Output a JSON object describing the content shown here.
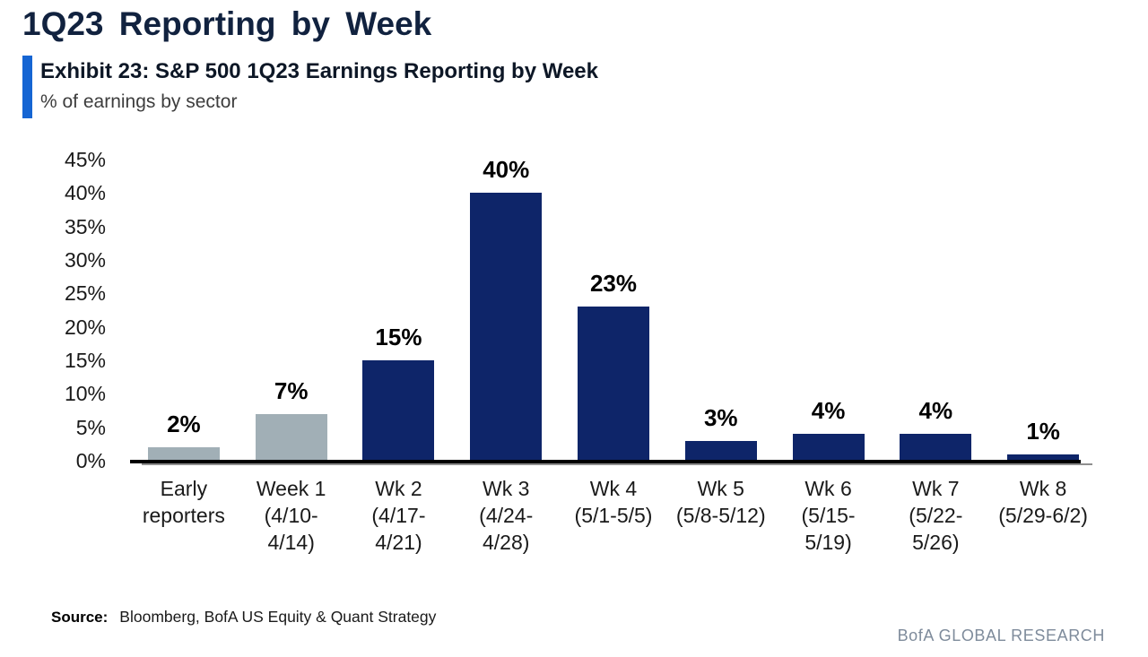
{
  "header": {
    "title": "1Q23 Reporting by Week",
    "exhibit_title": "Exhibit 23: S&P 500 1Q23 Earnings Reporting by Week",
    "subtitle": "% of earnings by sector"
  },
  "source": {
    "label": "Source:",
    "text": "Bloomberg, BofA US Equity & Quant Strategy"
  },
  "footer": {
    "brand": "BofA GLOBAL RESEARCH"
  },
  "colors": {
    "accent_blue": "#1565d3",
    "bar_navy": "#0e2569",
    "bar_gray": "#a1afb6",
    "title_navy": "#11223f",
    "footer_gray": "#7e8b9b",
    "axis_black": "#000000"
  },
  "chart_data": {
    "type": "bar",
    "title": "S&P 500 1Q23 Earnings Reporting by Week",
    "xlabel": "",
    "ylabel": "% of earnings by sector",
    "ylim": [
      0,
      45
    ],
    "grid": false,
    "legend": false,
    "categories": [
      "Early reporters",
      "Week 1 (4/10-4/14)",
      "Wk 2 (4/17-4/21)",
      "Wk 3 (4/24-4/28)",
      "Wk 4 (5/1-5/5)",
      "Wk 5 (5/8-5/12)",
      "Wk 6 (5/15-5/19)",
      "Wk 7 (5/22-5/26)",
      "Wk 8 (5/29-6/2)"
    ],
    "category_label_lines": [
      [
        "Early",
        "reporters"
      ],
      [
        "Week 1",
        "(4/10-",
        "4/14)"
      ],
      [
        "Wk 2",
        "(4/17-",
        "4/21)"
      ],
      [
        "Wk 3",
        "(4/24-",
        "4/28)"
      ],
      [
        "Wk 4",
        "(5/1-5/5)"
      ],
      [
        "Wk 5",
        "(5/8-5/12)"
      ],
      [
        "Wk 6",
        "(5/15-",
        "5/19)"
      ],
      [
        "Wk 7",
        "(5/22-",
        "5/26)"
      ],
      [
        "Wk 8",
        "(5/29-6/2)"
      ]
    ],
    "values": [
      2,
      7,
      15,
      40,
      23,
      3,
      4,
      4,
      1
    ],
    "value_labels": [
      "2%",
      "7%",
      "15%",
      "40%",
      "23%",
      "3%",
      "4%",
      "4%",
      "1%"
    ],
    "bar_color_keys": [
      "gray",
      "gray",
      "navy",
      "navy",
      "navy",
      "navy",
      "navy",
      "navy",
      "navy"
    ],
    "ytick_values": [
      0,
      5,
      10,
      15,
      20,
      25,
      30,
      35,
      40,
      45
    ],
    "ytick_labels": [
      "0%",
      "5%",
      "10%",
      "15%",
      "20%",
      "25%",
      "30%",
      "35%",
      "40%",
      "45%"
    ]
  }
}
